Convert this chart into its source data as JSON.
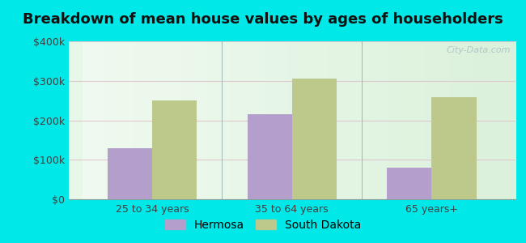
{
  "title": "Breakdown of mean house values by ages of householders",
  "categories": [
    "25 to 34 years",
    "35 to 64 years",
    "65 years+"
  ],
  "series": [
    {
      "name": "Hermosa",
      "values": [
        130000,
        215000,
        80000
      ],
      "color": "#b49fcc"
    },
    {
      "name": "South Dakota",
      "values": [
        250000,
        305000,
        258000
      ],
      "color": "#bdc98a"
    }
  ],
  "ylim": [
    0,
    400000
  ],
  "yticks": [
    0,
    100000,
    200000,
    300000,
    400000
  ],
  "ytick_labels": [
    "$0",
    "$100k",
    "$200k",
    "$300k",
    "$400k"
  ],
  "background_outer": "#00e8e8",
  "title_fontsize": 13,
  "axis_label_fontsize": 9,
  "legend_fontsize": 10,
  "bar_width": 0.32,
  "watermark": "City-Data.com",
  "grid_color": "#e0c8d0"
}
